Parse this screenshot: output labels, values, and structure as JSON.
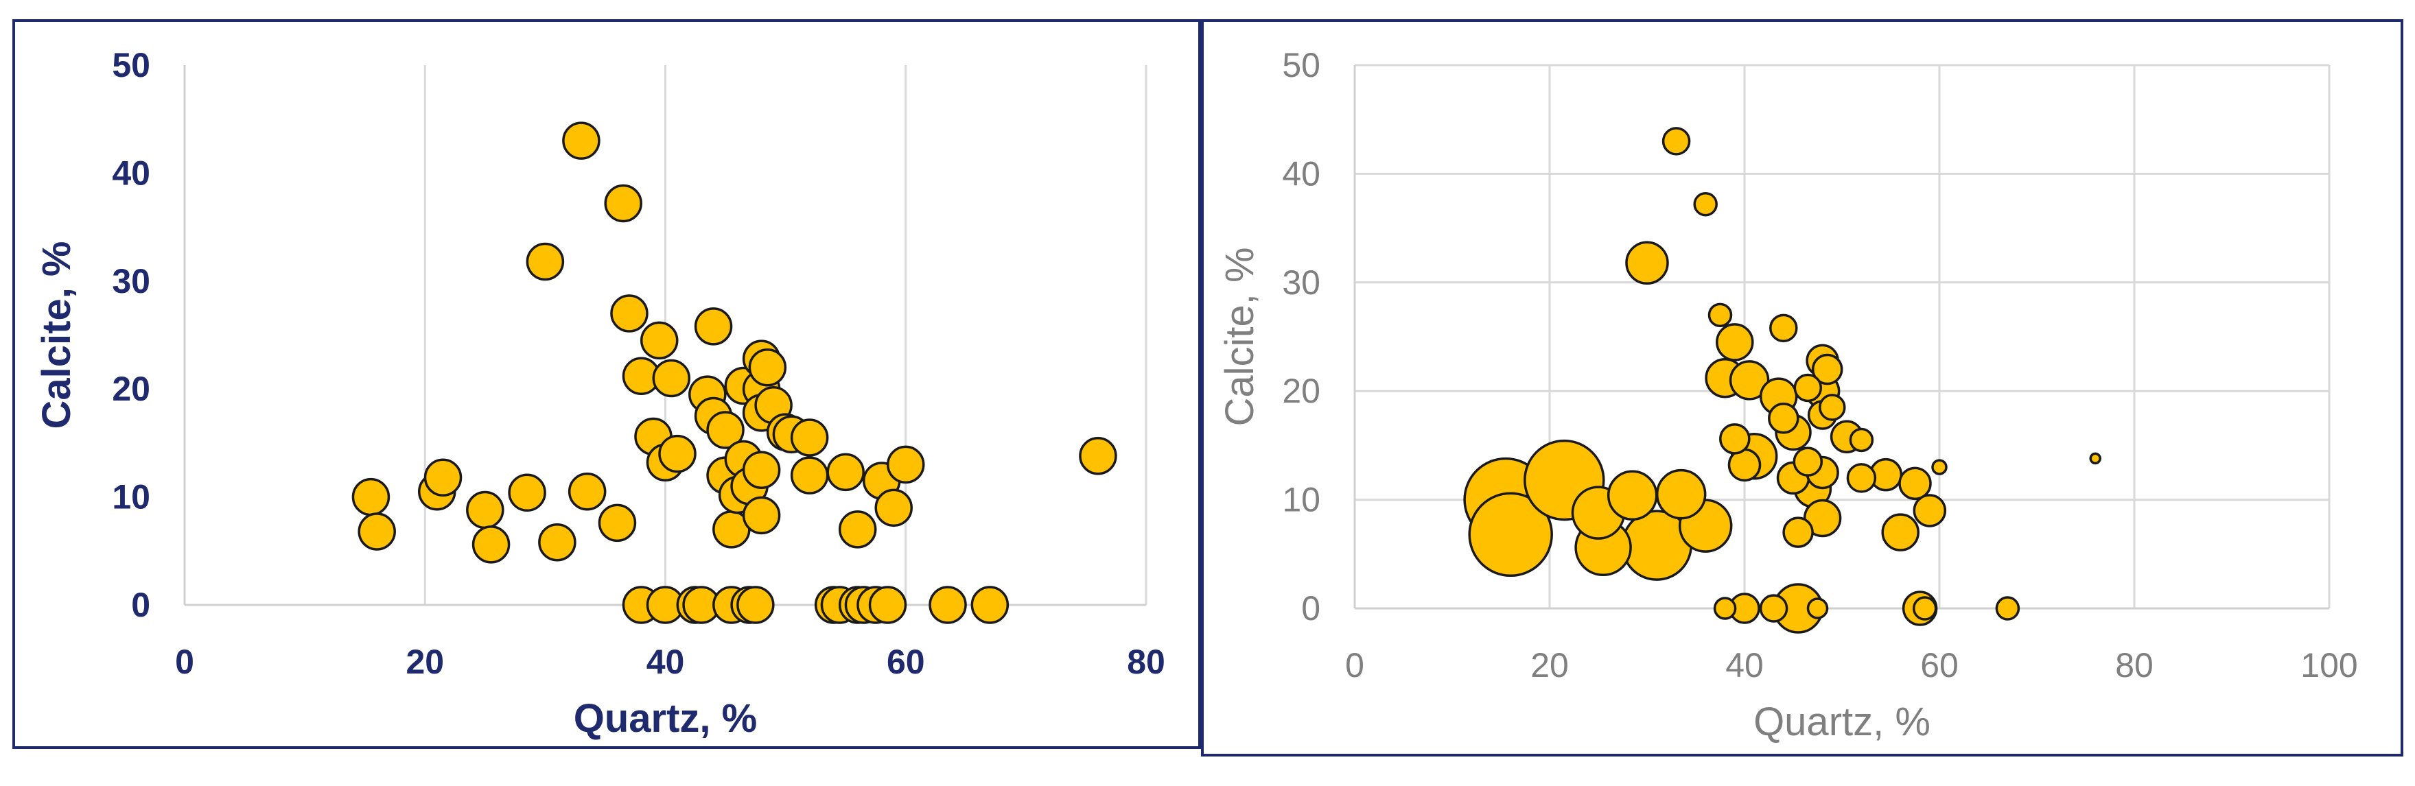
{
  "colors": {
    "marker_fill": "#ffc000",
    "marker_stroke": "#1a1a1a",
    "grid": "#d9d9d9",
    "frame": "#1f2a6e",
    "left_text": "#1f2a6e",
    "right_text": "#7f7f7f"
  },
  "chart_data": [
    {
      "type": "scatter",
      "title": "",
      "xlabel": "Quartz, %",
      "ylabel": "Calcite, %",
      "xlim": [
        0,
        80
      ],
      "ylim": [
        0,
        50
      ],
      "xticks": [
        "0",
        "20",
        "40",
        "60",
        "80"
      ],
      "yticks": [
        "0",
        "10",
        "20",
        "30",
        "40",
        "50"
      ],
      "grid": "vertical",
      "points": [
        {
          "x": 15.5,
          "y": 10
        },
        {
          "x": 16,
          "y": 6.8
        },
        {
          "x": 21,
          "y": 10.5
        },
        {
          "x": 21.5,
          "y": 11.8
        },
        {
          "x": 25,
          "y": 8.8
        },
        {
          "x": 25.5,
          "y": 5.6
        },
        {
          "x": 28.5,
          "y": 10.4
        },
        {
          "x": 30,
          "y": 31.8
        },
        {
          "x": 31,
          "y": 5.8
        },
        {
          "x": 33,
          "y": 43
        },
        {
          "x": 33.5,
          "y": 10.5
        },
        {
          "x": 36,
          "y": 7.6
        },
        {
          "x": 36.5,
          "y": 37.2
        },
        {
          "x": 37,
          "y": 27
        },
        {
          "x": 38,
          "y": 21.2
        },
        {
          "x": 38,
          "y": 0
        },
        {
          "x": 39,
          "y": 15.6
        },
        {
          "x": 39.5,
          "y": 24.5
        },
        {
          "x": 40,
          "y": 13.2
        },
        {
          "x": 40,
          "y": 0
        },
        {
          "x": 40.5,
          "y": 21
        },
        {
          "x": 41,
          "y": 14
        },
        {
          "x": 42.5,
          "y": 0
        },
        {
          "x": 43,
          "y": 0
        },
        {
          "x": 43.5,
          "y": 19.5
        },
        {
          "x": 44,
          "y": 25.8
        },
        {
          "x": 44,
          "y": 17.5
        },
        {
          "x": 45,
          "y": 16.2
        },
        {
          "x": 45,
          "y": 12
        },
        {
          "x": 45.5,
          "y": 7
        },
        {
          "x": 45.5,
          "y": 0
        },
        {
          "x": 46,
          "y": 10.2
        },
        {
          "x": 46.5,
          "y": 20.3
        },
        {
          "x": 46.5,
          "y": 13.5
        },
        {
          "x": 47,
          "y": 11
        },
        {
          "x": 47,
          "y": 0
        },
        {
          "x": 47.5,
          "y": 0
        },
        {
          "x": 48,
          "y": 22.8
        },
        {
          "x": 48,
          "y": 20
        },
        {
          "x": 48,
          "y": 17.8
        },
        {
          "x": 48,
          "y": 12.5
        },
        {
          "x": 48,
          "y": 8.3
        },
        {
          "x": 48.5,
          "y": 22
        },
        {
          "x": 49,
          "y": 18.5
        },
        {
          "x": 50,
          "y": 16
        },
        {
          "x": 50.5,
          "y": 15.8
        },
        {
          "x": 52,
          "y": 12
        },
        {
          "x": 52,
          "y": 15.5
        },
        {
          "x": 54,
          "y": 0
        },
        {
          "x": 54.5,
          "y": 0
        },
        {
          "x": 55,
          "y": 12.3
        },
        {
          "x": 56,
          "y": 7
        },
        {
          "x": 56,
          "y": 0
        },
        {
          "x": 56.5,
          "y": 0
        },
        {
          "x": 57.5,
          "y": 0
        },
        {
          "x": 58,
          "y": 11.5
        },
        {
          "x": 58.5,
          "y": 0
        },
        {
          "x": 59,
          "y": 9
        },
        {
          "x": 60,
          "y": 13
        },
        {
          "x": 63.5,
          "y": 0
        },
        {
          "x": 67,
          "y": 0
        },
        {
          "x": 76,
          "y": 13.8
        }
      ]
    },
    {
      "type": "scatter",
      "title": "",
      "xlabel": "Quartz, %",
      "ylabel": "Calcite, %",
      "xlim": [
        0,
        100
      ],
      "ylim": [
        0,
        50
      ],
      "xticks": [
        "0",
        "20",
        "40",
        "60",
        "80",
        "100"
      ],
      "yticks": [
        "0",
        "10",
        "20",
        "30",
        "40",
        "50"
      ],
      "grid": "both",
      "marker_size": "varies by point",
      "points": [
        {
          "x": 15.5,
          "y": 10,
          "size": 120
        },
        {
          "x": 16,
          "y": 6.8,
          "size": 120
        },
        {
          "x": 21.5,
          "y": 11.8,
          "size": 115
        },
        {
          "x": 25,
          "y": 8.8,
          "size": 75
        },
        {
          "x": 25.5,
          "y": 5.6,
          "size": 80
        },
        {
          "x": 28.5,
          "y": 10.4,
          "size": 70
        },
        {
          "x": 30,
          "y": 31.8,
          "size": 60
        },
        {
          "x": 31,
          "y": 5.8,
          "size": 100
        },
        {
          "x": 33,
          "y": 43,
          "size": 38
        },
        {
          "x": 33.5,
          "y": 10.5,
          "size": 70
        },
        {
          "x": 36,
          "y": 37.2,
          "size": 32
        },
        {
          "x": 36,
          "y": 7.6,
          "size": 75
        },
        {
          "x": 37.5,
          "y": 27,
          "size": 32
        },
        {
          "x": 38,
          "y": 21.2,
          "size": 55
        },
        {
          "x": 38,
          "y": 0,
          "size": 30
        },
        {
          "x": 39,
          "y": 15.6,
          "size": 42
        },
        {
          "x": 39,
          "y": 24.5,
          "size": 52
        },
        {
          "x": 40,
          "y": 13.2,
          "size": 45
        },
        {
          "x": 40,
          "y": 0,
          "size": 42
        },
        {
          "x": 40.5,
          "y": 21,
          "size": 55
        },
        {
          "x": 41,
          "y": 14,
          "size": 65
        },
        {
          "x": 43,
          "y": 0,
          "size": 38
        },
        {
          "x": 43.5,
          "y": 19.5,
          "size": 52
        },
        {
          "x": 44,
          "y": 25.8,
          "size": 38
        },
        {
          "x": 44,
          "y": 17.5,
          "size": 42
        },
        {
          "x": 45,
          "y": 16.2,
          "size": 50
        },
        {
          "x": 45,
          "y": 12,
          "size": 45
        },
        {
          "x": 45.5,
          "y": 7,
          "size": 42
        },
        {
          "x": 45.5,
          "y": 0,
          "size": 70
        },
        {
          "x": 46.5,
          "y": 20.3,
          "size": 38
        },
        {
          "x": 46.5,
          "y": 13.5,
          "size": 40
        },
        {
          "x": 47,
          "y": 11,
          "size": 52
        },
        {
          "x": 47.5,
          "y": 0,
          "size": 28
        },
        {
          "x": 48,
          "y": 22.8,
          "size": 45
        },
        {
          "x": 48,
          "y": 20,
          "size": 48
        },
        {
          "x": 48,
          "y": 17.8,
          "size": 40
        },
        {
          "x": 48,
          "y": 12.5,
          "size": 45
        },
        {
          "x": 48,
          "y": 8.3,
          "size": 52
        },
        {
          "x": 48.5,
          "y": 22,
          "size": 42
        },
        {
          "x": 49,
          "y": 18.5,
          "size": 36
        },
        {
          "x": 50.5,
          "y": 15.8,
          "size": 45
        },
        {
          "x": 52,
          "y": 12,
          "size": 40
        },
        {
          "x": 52,
          "y": 15.5,
          "size": 32
        },
        {
          "x": 54.5,
          "y": 12.3,
          "size": 45
        },
        {
          "x": 56,
          "y": 7,
          "size": 52
        },
        {
          "x": 57.5,
          "y": 11.5,
          "size": 45
        },
        {
          "x": 58,
          "y": 0,
          "size": 48
        },
        {
          "x": 58.5,
          "y": 0,
          "size": 32
        },
        {
          "x": 59,
          "y": 9,
          "size": 45
        },
        {
          "x": 60,
          "y": 13,
          "size": 20
        },
        {
          "x": 67,
          "y": 0,
          "size": 32
        },
        {
          "x": 76,
          "y": 13.8,
          "size": 14
        }
      ]
    }
  ]
}
